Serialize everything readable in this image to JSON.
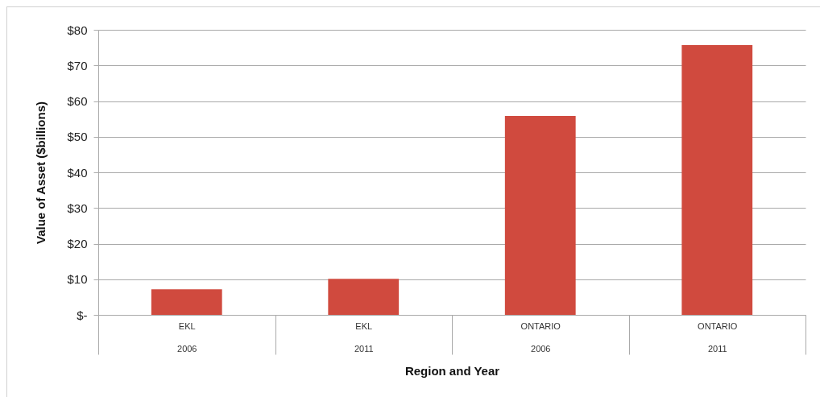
{
  "chart_data": {
    "type": "bar",
    "xlabel": "Region and Year",
    "ylabel": "Value of Asset ($billions)",
    "categories": [
      "EKL 2006",
      "EKL 2011",
      "ONTARIO 2006",
      "ONTARIO 2011"
    ],
    "values": [
      7.2,
      10.1,
      55.8,
      75.7
    ],
    "color": "#d04a3e",
    "ylim": [
      0,
      80
    ],
    "yticks": [
      {
        "value": 0,
        "label": "$-"
      },
      {
        "value": 10,
        "label": "$10"
      },
      {
        "value": 20,
        "label": "$20"
      },
      {
        "value": 30,
        "label": "$30"
      },
      {
        "value": 40,
        "label": "$40"
      },
      {
        "value": 50,
        "label": "$50"
      },
      {
        "value": 60,
        "label": "$60"
      },
      {
        "value": 70,
        "label": "$70"
      },
      {
        "value": 80,
        "label": "$80"
      }
    ],
    "grid": "y"
  }
}
